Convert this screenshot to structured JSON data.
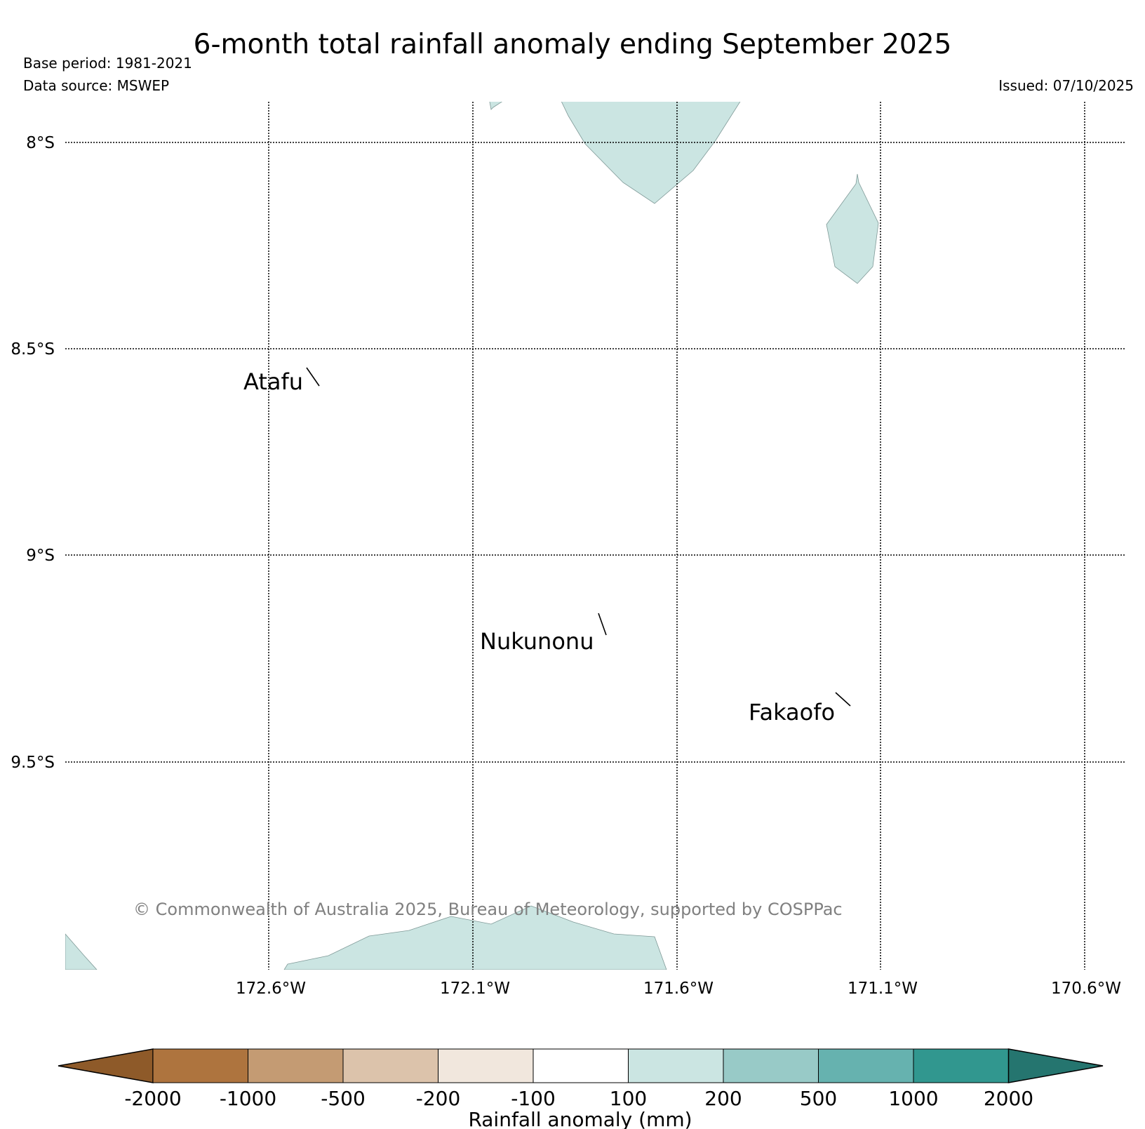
{
  "title": "6-month total rainfall anomaly ending September 2025",
  "base_period": "Base period: 1981-2021",
  "data_source": "Data source: MSWEP",
  "issued": "Issued: 07/10/2025",
  "copyright": "© Commonwealth of Australia 2025, Bureau of Meteorology, supported by COSPPac",
  "map": {
    "lat_labels": [
      "8°S",
      "8.5°S",
      "9°S",
      "9.5°S"
    ],
    "lon_labels": [
      "172.6°W",
      "172.1°W",
      "171.6°W",
      "171.1°W",
      "170.6°W"
    ],
    "places": [
      {
        "name": "Atafu",
        "lon": -172.52,
        "lat": -8.55
      },
      {
        "name": "Nukunonu",
        "lon": -171.82,
        "lat": -9.17
      },
      {
        "name": "Fakaofo",
        "lon": -171.23,
        "lat": -9.37
      }
    ],
    "anomaly_region_color": "#cbe5e2"
  },
  "colorbar": {
    "label": "Rainfall anomaly (mm)",
    "ticks": [
      "-2000",
      "-1000",
      "-500",
      "-200",
      "-100",
      "100",
      "200",
      "500",
      "1000",
      "2000"
    ],
    "colors": [
      "#8e5a29",
      "#ae743e",
      "#c49b73",
      "#dcc3ab",
      "#f1e7dd",
      "#ffffff",
      "#cbe5e2",
      "#98cac7",
      "#66b2af",
      "#31978f",
      "#25756f"
    ]
  }
}
